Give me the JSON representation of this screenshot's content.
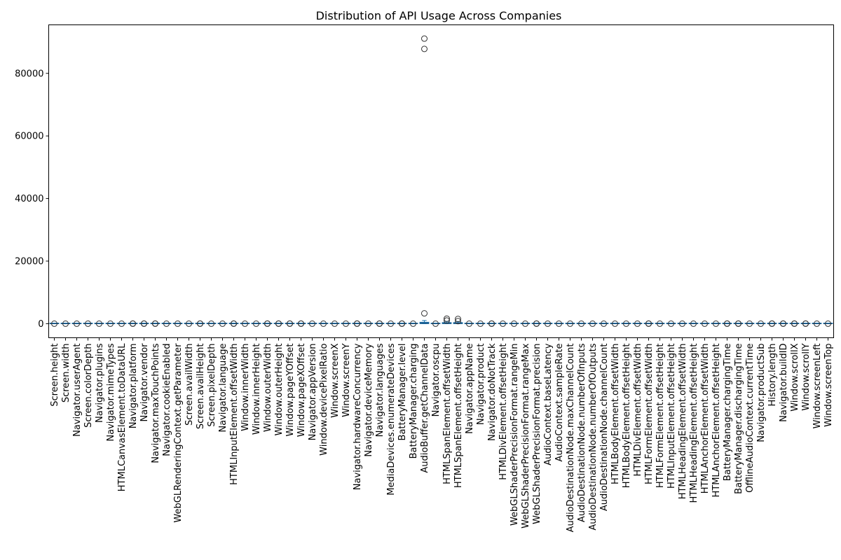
{
  "chart_data": {
    "type": "box",
    "title": "Distribution of API Usage Across Companies",
    "xlabel": "",
    "ylabel": "",
    "ylim": [
      -4500,
      95500
    ],
    "yticks": [
      0,
      20000,
      40000,
      60000,
      80000
    ],
    "ytick_labels": [
      "0",
      "20000",
      "40000",
      "60000",
      "80000"
    ],
    "grid": false,
    "box_color": "#1f77b4",
    "categories": [
      "Screen.height",
      "Screen.width",
      "Navigator.userAgent",
      "Screen.colorDepth",
      "Navigator.plugins",
      "Navigator.mimeTypes",
      "HTMLCanvasElement.toDataURL",
      "Navigator.platform",
      "Navigator.vendor",
      "Navigator.maxTouchPoints",
      "Navigator.cookieEnabled",
      "WebGLRenderingContext.getParameter",
      "Screen.availWidth",
      "Screen.availHeight",
      "Screen.pixelDepth",
      "Navigator.language",
      "HTMLInputElement.offsetWidth",
      "Window.innerWidth",
      "Window.innerHeight",
      "Window.outerWidth",
      "Window.outerHeight",
      "Window.pageYOffset",
      "Window.pageXOffset",
      "Navigator.appVersion",
      "Window.devicePixelRatio",
      "Window.screenX",
      "Window.screenY",
      "Navigator.hardwareConcurrency",
      "Navigator.deviceMemory",
      "Navigator.languages",
      "MediaDevices.enumerateDevices",
      "BatteryManager.level",
      "BatteryManager.charging",
      "AudioBuffer.getChannelData",
      "Navigator.oscpu",
      "HTMLSpanElement.offsetWidth",
      "HTMLSpanElement.offsetHeight",
      "Navigator.appName",
      "Navigator.product",
      "Navigator.doNotTrack",
      "HTMLDivElement.offsetHeight",
      "WebGLShaderPrecisionFormat.rangeMin",
      "WebGLShaderPrecisionFormat.rangeMax",
      "WebGLShaderPrecisionFormat.precision",
      "AudioContext.baseLatency",
      "AudioContext.sampleRate",
      "AudioDestinationNode.maxChannelCount",
      "AudioDestinationNode.numberOfInputs",
      "AudioDestinationNode.numberOfOutputs",
      "AudioDestinationNode.channelCount",
      "HTMLBodyElement.offsetWidth",
      "HTMLBodyElement.offsetHeight",
      "HTMLDivElement.offsetWidth",
      "HTMLFormElement.offsetWidth",
      "HTMLFormElement.offsetHeight",
      "HTMLInputElement.offsetHeight",
      "HTMLHeadingElement.offsetWidth",
      "HTMLHeadingElement.offsetHeight",
      "HTMLAnchorElement.offsetWidth",
      "HTMLAnchorElement.offsetHeight",
      "BatteryManager.chargingTime",
      "BatteryManager.dischargingTime",
      "OfflineAudioContext.currentTime",
      "Navigator.productSub",
      "History.length",
      "Navigator.buildID",
      "Window.scrollX",
      "Window.scrollY",
      "Window.screenLeft",
      "Window.screenTop"
    ],
    "boxes": [
      {
        "q1": 0,
        "median": 0,
        "q3": 0,
        "whislo": 0,
        "whishi": 0,
        "fliers": [
          0
        ]
      },
      {
        "q1": 0,
        "median": 0,
        "q3": 0,
        "whislo": 0,
        "whishi": 0,
        "fliers": [
          0
        ]
      },
      {
        "q1": 0,
        "median": 0,
        "q3": 0,
        "whislo": 0,
        "whishi": 0,
        "fliers": [
          0
        ]
      },
      {
        "q1": 0,
        "median": 0,
        "q3": 0,
        "whislo": 0,
        "whishi": 0,
        "fliers": [
          0
        ]
      },
      {
        "q1": 0,
        "median": 0,
        "q3": 0,
        "whislo": 0,
        "whishi": 0,
        "fliers": [
          0
        ]
      },
      {
        "q1": 0,
        "median": 0,
        "q3": 0,
        "whislo": 0,
        "whishi": 0,
        "fliers": [
          0
        ]
      },
      {
        "q1": 0,
        "median": 0,
        "q3": 0,
        "whislo": 0,
        "whishi": 0,
        "fliers": [
          0
        ]
      },
      {
        "q1": 0,
        "median": 0,
        "q3": 0,
        "whislo": 0,
        "whishi": 0,
        "fliers": [
          0,
          40
        ]
      },
      {
        "q1": 0,
        "median": 0,
        "q3": 0,
        "whislo": 0,
        "whishi": 0,
        "fliers": [
          0,
          40
        ]
      },
      {
        "q1": 0,
        "median": 0,
        "q3": 0,
        "whislo": 0,
        "whishi": 0,
        "fliers": [
          0,
          40
        ]
      },
      {
        "q1": 0,
        "median": 0,
        "q3": 0,
        "whislo": 0,
        "whishi": 0,
        "fliers": [
          0
        ]
      },
      {
        "q1": 0,
        "median": 0,
        "q3": 0,
        "whislo": 0,
        "whishi": 0,
        "fliers": [
          0
        ]
      },
      {
        "q1": 0,
        "median": 0,
        "q3": 0,
        "whislo": 0,
        "whishi": 0,
        "fliers": [
          0
        ]
      },
      {
        "q1": 0,
        "median": 0,
        "q3": 0,
        "whislo": 0,
        "whishi": 0,
        "fliers": [
          0,
          40
        ]
      },
      {
        "q1": 0,
        "median": 0,
        "q3": 0,
        "whislo": 0,
        "whishi": 0,
        "fliers": [
          0
        ]
      },
      {
        "q1": 0,
        "median": 0,
        "q3": 0,
        "whislo": 0,
        "whishi": 0,
        "fliers": [
          0
        ]
      },
      {
        "q1": 0,
        "median": 0,
        "q3": 0,
        "whislo": 0,
        "whishi": 0,
        "fliers": [
          0,
          40
        ]
      },
      {
        "q1": 0,
        "median": 0,
        "q3": 0,
        "whislo": 0,
        "whishi": 0,
        "fliers": [
          0
        ]
      },
      {
        "q1": 0,
        "median": 0,
        "q3": 0,
        "whislo": 0,
        "whishi": 0,
        "fliers": [
          0
        ]
      },
      {
        "q1": 0,
        "median": 0,
        "q3": 0,
        "whislo": 0,
        "whishi": 0,
        "fliers": [
          0,
          40
        ]
      },
      {
        "q1": 0,
        "median": 0,
        "q3": 0,
        "whislo": 0,
        "whishi": 0,
        "fliers": [
          0,
          40
        ]
      },
      {
        "q1": 0,
        "median": 0,
        "q3": 0,
        "whislo": 0,
        "whishi": 0,
        "fliers": [
          0,
          40
        ]
      },
      {
        "q1": 0,
        "median": 0,
        "q3": 0,
        "whislo": 0,
        "whishi": 0,
        "fliers": [
          0,
          40
        ]
      },
      {
        "q1": 0,
        "median": 0,
        "q3": 0,
        "whislo": 0,
        "whishi": 0,
        "fliers": [
          0
        ]
      },
      {
        "q1": 0,
        "median": 0,
        "q3": 0,
        "whislo": 0,
        "whishi": 0,
        "fliers": [
          0
        ]
      },
      {
        "q1": 0,
        "median": 0,
        "q3": 0,
        "whislo": 0,
        "whishi": 0,
        "fliers": [
          0
        ]
      },
      {
        "q1": 0,
        "median": 0,
        "q3": 0,
        "whislo": 0,
        "whishi": 0,
        "fliers": [
          0
        ]
      },
      {
        "q1": 0,
        "median": 0,
        "q3": 0,
        "whislo": 0,
        "whishi": 0,
        "fliers": [
          0,
          40
        ]
      },
      {
        "q1": 0,
        "median": 0,
        "q3": 0,
        "whislo": 0,
        "whishi": 0,
        "fliers": [
          0
        ]
      },
      {
        "q1": 0,
        "median": 0,
        "q3": 0,
        "whislo": 0,
        "whishi": 0,
        "fliers": [
          0,
          40
        ]
      },
      {
        "q1": 0,
        "median": 0,
        "q3": 0,
        "whislo": 0,
        "whishi": 0,
        "fliers": [
          0
        ]
      },
      {
        "q1": 0,
        "median": 0,
        "q3": 0,
        "whislo": 0,
        "whishi": 0,
        "fliers": [
          0,
          40
        ]
      },
      {
        "q1": 0,
        "median": 0,
        "q3": 0,
        "whislo": 0,
        "whishi": 0,
        "fliers": [
          0
        ]
      },
      {
        "q1": 0,
        "median": 200,
        "q3": 450,
        "whislo": 0,
        "whishi": 1000,
        "fliers": [
          3300,
          87800,
          91100
        ]
      },
      {
        "q1": 0,
        "median": 0,
        "q3": 0,
        "whislo": 0,
        "whishi": 0,
        "fliers": [
          0
        ]
      },
      {
        "q1": 0,
        "median": 150,
        "q3": 350,
        "whislo": 0,
        "whishi": 700,
        "fliers": [
          1000,
          1600
        ]
      },
      {
        "q1": 0,
        "median": 150,
        "q3": 350,
        "whislo": 0,
        "whishi": 700,
        "fliers": [
          800,
          1500
        ]
      },
      {
        "q1": 0,
        "median": 0,
        "q3": 0,
        "whislo": 0,
        "whishi": 0,
        "fliers": [
          0
        ]
      },
      {
        "q1": 0,
        "median": 0,
        "q3": 0,
        "whislo": 0,
        "whishi": 0,
        "fliers": [
          0
        ]
      },
      {
        "q1": 0,
        "median": 0,
        "q3": 0,
        "whislo": 0,
        "whishi": 0,
        "fliers": [
          0,
          40
        ]
      },
      {
        "q1": 0,
        "median": 0,
        "q3": 0,
        "whislo": 0,
        "whishi": 0,
        "fliers": [
          0
        ]
      },
      {
        "q1": 0,
        "median": 0,
        "q3": 0,
        "whislo": 0,
        "whishi": 0,
        "fliers": [
          0
        ]
      },
      {
        "q1": 0,
        "median": 0,
        "q3": 0,
        "whislo": 0,
        "whishi": 0,
        "fliers": [
          0
        ]
      },
      {
        "q1": 0,
        "median": 0,
        "q3": 0,
        "whislo": 0,
        "whishi": 0,
        "fliers": [
          0,
          40
        ]
      },
      {
        "q1": 0,
        "median": 0,
        "q3": 0,
        "whislo": 0,
        "whishi": 0,
        "fliers": [
          0
        ]
      },
      {
        "q1": 0,
        "median": 0,
        "q3": 0,
        "whislo": 0,
        "whishi": 0,
        "fliers": [
          0
        ]
      },
      {
        "q1": 0,
        "median": 0,
        "q3": 0,
        "whislo": 0,
        "whishi": 0,
        "fliers": [
          0
        ]
      },
      {
        "q1": 0,
        "median": 0,
        "q3": 0,
        "whislo": 0,
        "whishi": 0,
        "fliers": [
          0
        ]
      },
      {
        "q1": 0,
        "median": 0,
        "q3": 0,
        "whislo": 0,
        "whishi": 0,
        "fliers": [
          0
        ]
      },
      {
        "q1": 0,
        "median": 0,
        "q3": 0,
        "whislo": 0,
        "whishi": 0,
        "fliers": [
          0
        ]
      },
      {
        "q1": 0,
        "median": 0,
        "q3": 0,
        "whislo": 0,
        "whishi": 0,
        "fliers": [
          0
        ]
      },
      {
        "q1": 0,
        "median": 0,
        "q3": 0,
        "whislo": 0,
        "whishi": 0,
        "fliers": [
          0
        ]
      },
      {
        "q1": 0,
        "median": 0,
        "q3": 0,
        "whislo": 0,
        "whishi": 0,
        "fliers": [
          0
        ]
      },
      {
        "q1": 0,
        "median": 0,
        "q3": 0,
        "whislo": 0,
        "whishi": 0,
        "fliers": [
          0,
          40
        ]
      },
      {
        "q1": 0,
        "median": 0,
        "q3": 0,
        "whislo": 0,
        "whishi": 0,
        "fliers": [
          0
        ]
      },
      {
        "q1": 0,
        "median": 0,
        "q3": 0,
        "whislo": 0,
        "whishi": 0,
        "fliers": [
          0
        ]
      },
      {
        "q1": 0,
        "median": 0,
        "q3": 0,
        "whislo": 0,
        "whishi": 0,
        "fliers": [
          0
        ]
      },
      {
        "q1": 0,
        "median": 0,
        "q3": 0,
        "whislo": 0,
        "whishi": 0,
        "fliers": [
          0
        ]
      },
      {
        "q1": 0,
        "median": 0,
        "q3": 0,
        "whislo": 0,
        "whishi": 0,
        "fliers": [
          0
        ]
      },
      {
        "q1": 0,
        "median": 0,
        "q3": 0,
        "whislo": 0,
        "whishi": 0,
        "fliers": [
          0
        ]
      },
      {
        "q1": 0,
        "median": 0,
        "q3": 0,
        "whislo": 0,
        "whishi": 0,
        "fliers": [
          0,
          40
        ]
      },
      {
        "q1": 0,
        "median": 0,
        "q3": 0,
        "whislo": 0,
        "whishi": 0,
        "fliers": [
          0,
          40
        ]
      },
      {
        "q1": 0,
        "median": 0,
        "q3": 0,
        "whislo": 0,
        "whishi": 0,
        "fliers": [
          0
        ]
      },
      {
        "q1": 0,
        "median": 0,
        "q3": 0,
        "whislo": 0,
        "whishi": 0,
        "fliers": [
          0
        ]
      },
      {
        "q1": 0,
        "median": 0,
        "q3": 0,
        "whislo": 0,
        "whishi": 0,
        "fliers": [
          0,
          40
        ]
      },
      {
        "q1": 0,
        "median": 0,
        "q3": 0,
        "whislo": 0,
        "whishi": 0,
        "fliers": [
          0,
          40
        ]
      },
      {
        "q1": 0,
        "median": 0,
        "q3": 0,
        "whislo": 0,
        "whishi": 0,
        "fliers": [
          0,
          40
        ]
      },
      {
        "q1": 0,
        "median": 0,
        "q3": 0,
        "whislo": 0,
        "whishi": 0,
        "fliers": [
          0,
          40
        ]
      },
      {
        "q1": 0,
        "median": 0,
        "q3": 0,
        "whislo": 0,
        "whishi": 0,
        "fliers": [
          0
        ]
      },
      {
        "q1": 0,
        "median": 0,
        "q3": 0,
        "whislo": 0,
        "whishi": 0,
        "fliers": [
          0
        ]
      }
    ]
  }
}
